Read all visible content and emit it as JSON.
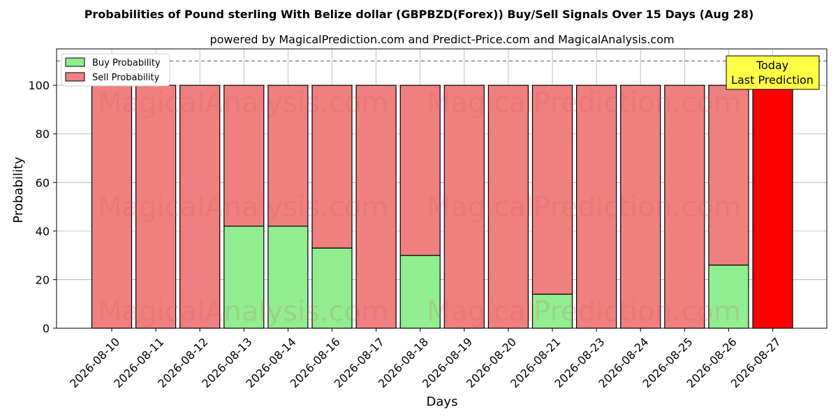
{
  "chart_data": {
    "type": "bar",
    "stacked": true,
    "title": "Probabilities of Pound sterling With Belize dollar (GBPBZD(Forex)) Buy/Sell Signals Over 15 Days (Aug 28)",
    "subtitle": "powered by MagicalPrediction.com and Predict-Price.com and MagicalAnalysis.com",
    "xlabel": "Days",
    "ylabel": "Probability",
    "ylim": [
      0,
      115
    ],
    "yticks": [
      0,
      20,
      40,
      60,
      80,
      100
    ],
    "grid": true,
    "legend_position": "top-left",
    "reference_line": 110,
    "categories": [
      "2026-08-10",
      "2026-08-11",
      "2026-08-12",
      "2026-08-13",
      "2026-08-14",
      "2026-08-16",
      "2026-08-17",
      "2026-08-18",
      "2026-08-19",
      "2026-08-20",
      "2026-08-21",
      "2026-08-23",
      "2026-08-24",
      "2026-08-25",
      "2026-08-26",
      "2026-08-27"
    ],
    "series": [
      {
        "name": "Buy Probability",
        "color": "#90ee90",
        "values": [
          0,
          0,
          0,
          42,
          42,
          33,
          0,
          30,
          0,
          0,
          14,
          0,
          0,
          0,
          26,
          0
        ]
      },
      {
        "name": "Sell Probability",
        "color": "#f08080",
        "values": [
          100,
          100,
          100,
          58,
          58,
          67,
          100,
          70,
          100,
          100,
          86,
          100,
          100,
          100,
          74,
          100
        ]
      }
    ],
    "highlight": {
      "index": 15,
      "color": "#ff0000"
    },
    "annotation": {
      "line1": "Today",
      "line2": "Last Prediction",
      "background": "#ffff44"
    },
    "watermarks": [
      "MagicalAnalysis.com",
      "MagicalPrediction.com"
    ]
  }
}
